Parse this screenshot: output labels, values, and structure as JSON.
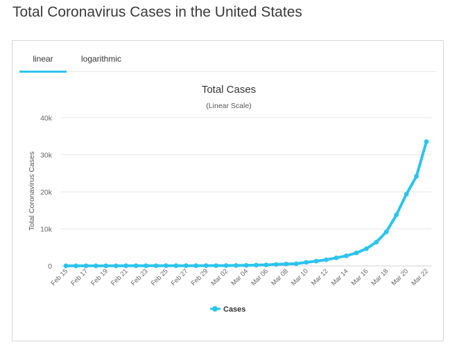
{
  "page": {
    "title": "Total Coronavirus Cases in the United States"
  },
  "tabs": [
    {
      "label": "linear",
      "active": true
    },
    {
      "label": "logarithmic",
      "active": false
    }
  ],
  "chart_data": {
    "type": "line",
    "title": "Total Cases",
    "subtitle": "(Linear Scale)",
    "xlabel": "",
    "ylabel": "Total Coronavirus Cases",
    "ylim": [
      0,
      40000
    ],
    "yticks": [
      0,
      10000,
      20000,
      30000,
      40000
    ],
    "ytick_labels": [
      "0",
      "10k",
      "20k",
      "30k",
      "40k"
    ],
    "x": [
      "Feb 15",
      "Feb 16",
      "Feb 17",
      "Feb 18",
      "Feb 19",
      "Feb 20",
      "Feb 21",
      "Feb 22",
      "Feb 23",
      "Feb 24",
      "Feb 25",
      "Feb 26",
      "Feb 27",
      "Feb 28",
      "Feb 29",
      "Mar 01",
      "Mar 02",
      "Mar 03",
      "Mar 04",
      "Mar 05",
      "Mar 06",
      "Mar 07",
      "Mar 08",
      "Mar 09",
      "Mar 10",
      "Mar 11",
      "Mar 12",
      "Mar 13",
      "Mar 14",
      "Mar 15",
      "Mar 16",
      "Mar 17",
      "Mar 18",
      "Mar 19",
      "Mar 20",
      "Mar 21",
      "Mar 22"
    ],
    "xtick_labels": [
      "Feb 15",
      "Feb 17",
      "Feb 19",
      "Feb 21",
      "Feb 23",
      "Feb 25",
      "Feb 27",
      "Feb 29",
      "Mar 02",
      "Mar 04",
      "Mar 06",
      "Mar 08",
      "Mar 10",
      "Mar 12",
      "Mar 14",
      "Mar 16",
      "Mar 18",
      "Mar 20",
      "Mar 22"
    ],
    "series": [
      {
        "name": "Cases",
        "color": "#2bc4ec",
        "values": [
          15,
          15,
          15,
          15,
          15,
          15,
          35,
          35,
          35,
          53,
          57,
          60,
          60,
          62,
          68,
          74,
          98,
          118,
          149,
          217,
          262,
          402,
          518,
          583,
          959,
          1281,
          1663,
          2179,
          2726,
          3499,
          4632,
          6421,
          9197,
          13779,
          19367,
          24192,
          33546
        ]
      }
    ],
    "grid": true,
    "legend": "bottom-center"
  },
  "colors": {
    "accent": "#2bc4ec",
    "grid": "#e6e6e6",
    "axis_text": "#666666"
  }
}
